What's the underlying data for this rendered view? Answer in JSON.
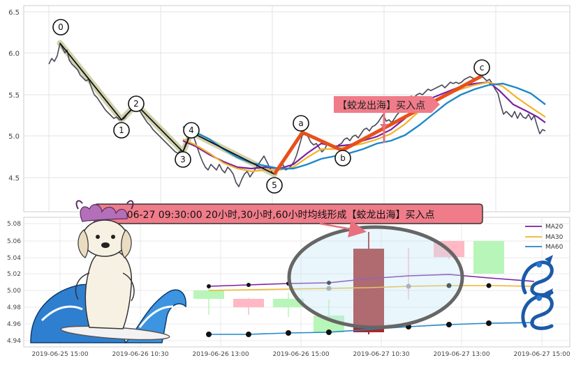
{
  "top_panel": {
    "y_ticks": [
      "6.5",
      "6.0",
      "5.5",
      "5.0",
      "4.5"
    ],
    "wave_labels": [
      "0",
      "1",
      "2",
      "3",
      "4",
      "5",
      "a",
      "b",
      "c"
    ],
    "buy_point_label": "【蛟龙出海】买入点"
  },
  "bottom_panel": {
    "y_ticks": [
      "5.08",
      "5.06",
      "5.04",
      "5.02",
      "5.00",
      "4.98",
      "4.96",
      "4.94"
    ],
    "x_ticks": [
      "2019-06-25 15:00",
      "2019-06-26 10:30",
      "2019-06-26 13:00",
      "2019-06-26 15:00",
      "2019-06-27 10:30",
      "2019-06-27 13:00",
      "2019-06-27 15:00"
    ],
    "signal_banner": "2019-06-27 09:30:00 20小时,30小时,60小时均线形成【蛟龙出海】买入点",
    "legend": [
      {
        "label": "MA20",
        "color": "#7a1fa2"
      },
      {
        "label": "MA30",
        "color": "#f0b429"
      },
      {
        "label": "MA60",
        "color": "#1f87c9"
      }
    ]
  },
  "colors": {
    "price_line": "#4a4a5a",
    "wave_path": "#111111",
    "wave_shadow": "#c9cba0",
    "abc_path": "#e8501a",
    "candle_up": "#b8f5b8",
    "candle_down": "#ffb8c4",
    "signal_candle": "#a62a2a",
    "banner_bg": "#f07c8a",
    "ellipse": "#666666"
  }
}
